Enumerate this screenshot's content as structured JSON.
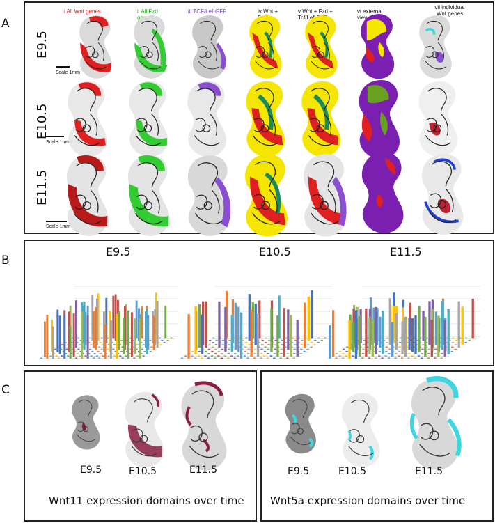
{
  "panels": {
    "A": {
      "letter": "A",
      "stages": [
        "E9.5",
        "E10.5",
        "E11.5"
      ],
      "scale_label": "Scale 1mm",
      "column_headers": [
        {
          "text": "i All Wnt genes",
          "color": "#e02020"
        },
        {
          "text": "ii All Fzd genes",
          "color": "#22b822"
        },
        {
          "text": "iii TCF/Lef-GFP",
          "color": "#7a3fc0"
        },
        {
          "text": "iv Wnt + Fzd",
          "color": "#111111"
        },
        {
          "text": "v Wnt + Fzd + Tcf/Lef-GFP",
          "color": "#111111"
        },
        {
          "text": "vi external view, as v",
          "color": "#111111"
        },
        {
          "text": "vii individual Wnt genes",
          "color": "#111111"
        }
      ]
    },
    "B": {
      "letter": "B",
      "titles": [
        "E9.5",
        "E10.5",
        "E11.5"
      ]
    },
    "C": {
      "letter": "C",
      "left": {
        "stages": [
          "E9.5",
          "E10.5",
          "E11.5"
        ],
        "caption": "Wnt11 expression domains over time"
      },
      "right": {
        "stages": [
          "E9.5",
          "E10.5",
          "E11.5"
        ],
        "caption": "Wnt5a expression domains over time"
      }
    }
  },
  "colors": {
    "wnt_red": "#e02020",
    "fzd_green": "#33cc33",
    "tcf_purple": "#8a4fd0",
    "overlap_yellow": "#f4e600",
    "external_purple": "#7a1fb0",
    "wnt11_maroon": "#8a1f45",
    "wnt5a_cyan": "#3fd6e0"
  }
}
